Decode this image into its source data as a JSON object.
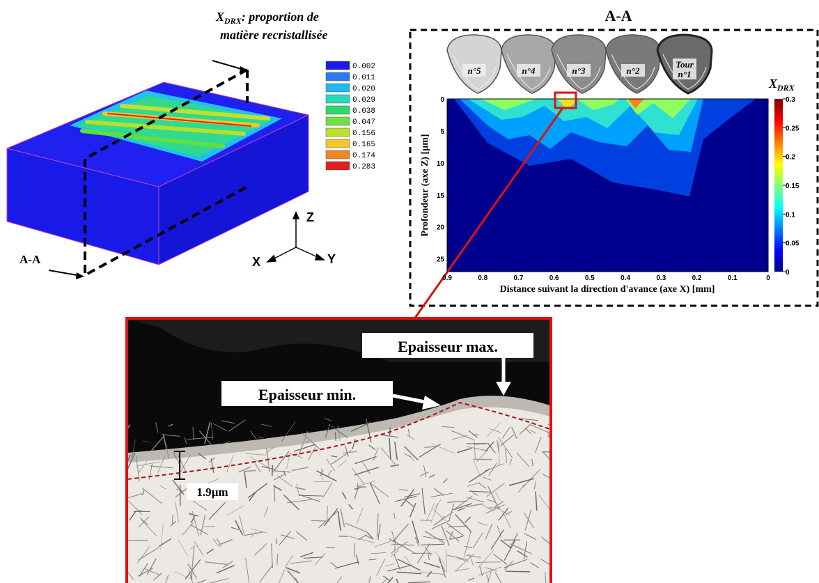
{
  "left_panel": {
    "legend_title": {
      "symbol": "X",
      "subscript": "DRX",
      "line1": ": proportion de",
      "line2": "matière recristallisée"
    },
    "legend": [
      {
        "label": "0.002",
        "color": "#1a1aee"
      },
      {
        "label": "0.011",
        "color": "#2a7af0"
      },
      {
        "label": "0.020",
        "color": "#1fb8f0"
      },
      {
        "label": "0.029",
        "color": "#22dcb4"
      },
      {
        "label": "0.038",
        "color": "#2ed86a"
      },
      {
        "label": "0.047",
        "color": "#6ee040"
      },
      {
        "label": "0.156",
        "color": "#c0e030"
      },
      {
        "label": "0.165",
        "color": "#f0c828"
      },
      {
        "label": "0.174",
        "color": "#f08828"
      },
      {
        "label": "0.283",
        "color": "#e02020"
      }
    ],
    "section_label": "A-A",
    "axes": {
      "z": "Z",
      "x": "X",
      "y": "Y"
    }
  },
  "right_panel": {
    "title": "A-A",
    "tools": [
      {
        "label": "n°5"
      },
      {
        "label": "n°4"
      },
      {
        "label": "n°3"
      },
      {
        "label": "n°2"
      },
      {
        "label": "Tour",
        "label2": "n°1"
      }
    ],
    "contour": {
      "xlabel": "Distance suivant la direction d'avance (axe X) [mm]",
      "ylabel": "Profondeur (axe Z) [µm]",
      "xlim": [
        0.9,
        0
      ],
      "xticks": [
        0.9,
        0.8,
        0.7,
        0.6,
        0.5,
        0.4,
        0.3,
        0.2,
        0.1,
        0
      ],
      "ylim": [
        0,
        27
      ],
      "yticks": [
        0,
        5,
        10,
        15,
        20,
        25
      ],
      "colorbar": {
        "symbol": "X",
        "subscript": "DRX",
        "lim": [
          0,
          0.3
        ],
        "ticks": [
          0,
          0.05,
          0.1,
          0.15,
          0.2,
          0.25,
          0.3
        ]
      }
    }
  },
  "micrograph": {
    "max_label": "Epaisseur max.",
    "min_label": "Epaisseur min.",
    "thickness": "1.9µm"
  }
}
